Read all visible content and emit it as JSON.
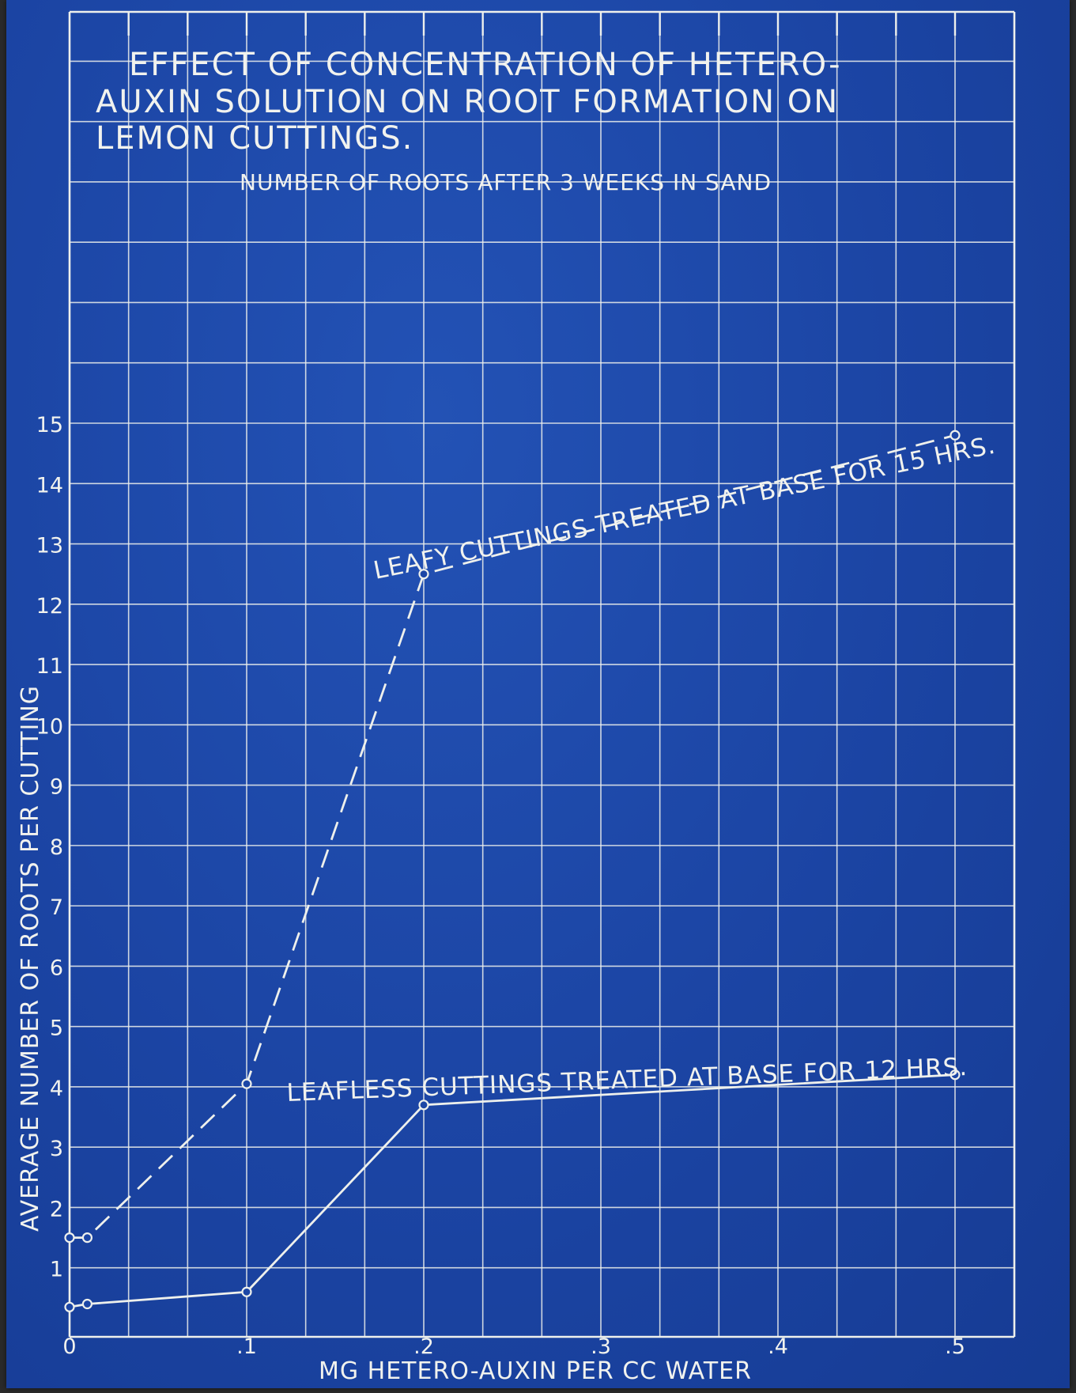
{
  "chart_data": {
    "type": "line",
    "title": "EFFECT OF CONCENTRATION OF HETERO-\nAUXIN SOLUTION ON ROOT FORMATION ON\nLEMON CUTTINGS.",
    "subtitle": "NUMBER OF ROOTS AFTER 3 WEEKS IN SAND",
    "xlabel": "MG HETERO-AUXIN PER CC WATER",
    "ylabel": "AVERAGE NUMBER OF ROOTS PER CUTTING",
    "xlim": [
      0,
      0.5
    ],
    "ylim": [
      0,
      15
    ],
    "grid": true,
    "x_ticks": [
      "0",
      ".1",
      ".2",
      ".3",
      ".4",
      ".5"
    ],
    "y_ticks": [
      "1",
      "2",
      "3",
      "4",
      "5",
      "6",
      "7",
      "8",
      "9",
      "10",
      "11",
      "12",
      "13",
      "14",
      "15"
    ],
    "series": [
      {
        "name": "LEAFY CUTTINGS TREATED AT BASE FOR 15 HRS.",
        "style": "dashed",
        "x": [
          0,
          0.01,
          0.1,
          0.2,
          0.5
        ],
        "y": [
          1.5,
          1.5,
          4.05,
          12.5,
          14.8
        ]
      },
      {
        "name": "LEAFLESS CUTTINGS TREATED AT BASE FOR 12 HRS.",
        "style": "solid",
        "x": [
          0,
          0.01,
          0.1,
          0.2,
          0.5
        ],
        "y": [
          0.35,
          0.4,
          0.6,
          3.7,
          4.2
        ]
      }
    ]
  }
}
